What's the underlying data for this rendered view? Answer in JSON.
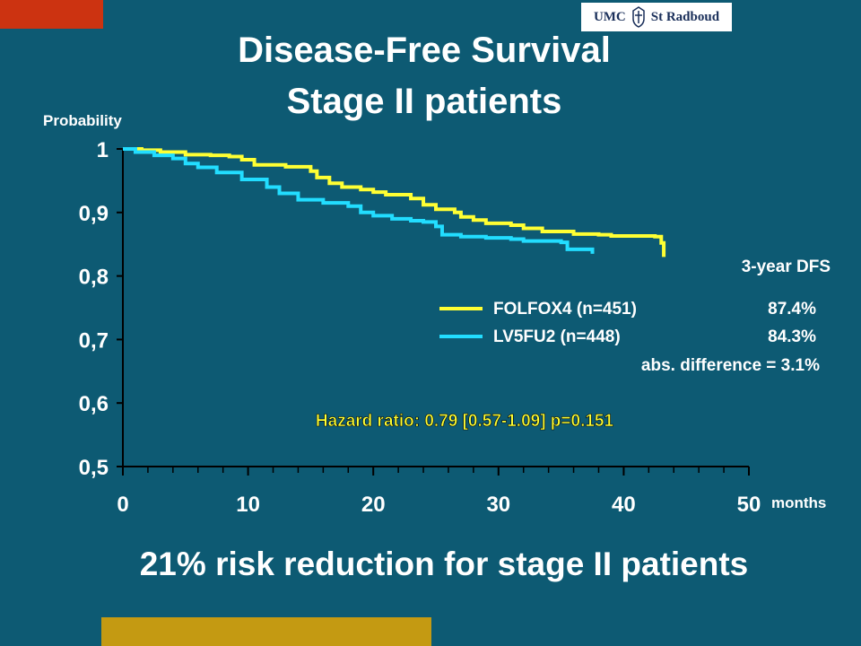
{
  "header": {
    "title_line1": "Disease-Free Survival",
    "title_line2": "Stage II patients",
    "logo_left": "UMC",
    "logo_right": "St Radboud"
  },
  "footer": {
    "subtitle": "21% risk reduction for stage II patients"
  },
  "colors": {
    "background": "#0d5a73",
    "folfox": "#ffff33",
    "lv5fu2": "#22ddff",
    "accent_orange": "#cc3311",
    "accent_gold": "#c49a12"
  },
  "chart_data": {
    "type": "line",
    "title": "",
    "ylabel": "Probability",
    "xlabel": "months",
    "xlim": [
      0,
      50
    ],
    "ylim": [
      0.5,
      1
    ],
    "x_ticks": [
      "0",
      "10",
      "20",
      "30",
      "40",
      "50"
    ],
    "y_ticks": [
      "1",
      "0,9",
      "0,8",
      "0,7",
      "0,6",
      "0,5"
    ],
    "legend_heading": "3-year DFS",
    "legend_position": "right",
    "series": [
      {
        "name": "FOLFOX4 (n=451)",
        "dfs": "87.4%",
        "color": "#ffff33",
        "points": [
          [
            0,
            1.0
          ],
          [
            1.5,
            0.998
          ],
          [
            3,
            0.995
          ],
          [
            5,
            0.991
          ],
          [
            7,
            0.99
          ],
          [
            8.5,
            0.988
          ],
          [
            9.5,
            0.983
          ],
          [
            10.5,
            0.975
          ],
          [
            13,
            0.972
          ],
          [
            15,
            0.965
          ],
          [
            15.5,
            0.955
          ],
          [
            16.5,
            0.946
          ],
          [
            17.5,
            0.94
          ],
          [
            19,
            0.936
          ],
          [
            20,
            0.932
          ],
          [
            21,
            0.928
          ],
          [
            23,
            0.922
          ],
          [
            24,
            0.912
          ],
          [
            25,
            0.905
          ],
          [
            26.5,
            0.9
          ],
          [
            27,
            0.893
          ],
          [
            28,
            0.888
          ],
          [
            29,
            0.883
          ],
          [
            31,
            0.88
          ],
          [
            32,
            0.875
          ],
          [
            33.5,
            0.87
          ],
          [
            36,
            0.866
          ],
          [
            38,
            0.865
          ],
          [
            39,
            0.863
          ],
          [
            41,
            0.863
          ],
          [
            42.5,
            0.862
          ],
          [
            43,
            0.852
          ],
          [
            43.2,
            0.83
          ]
        ]
      },
      {
        "name": "LV5FU2 (n=448)",
        "dfs": "84.3%",
        "color": "#22ddff",
        "points": [
          [
            0,
            1.0
          ],
          [
            1,
            0.995
          ],
          [
            2.5,
            0.99
          ],
          [
            4,
            0.985
          ],
          [
            5,
            0.977
          ],
          [
            6,
            0.971
          ],
          [
            7.5,
            0.963
          ],
          [
            9.5,
            0.952
          ],
          [
            11.5,
            0.94
          ],
          [
            12.5,
            0.93
          ],
          [
            14,
            0.92
          ],
          [
            16,
            0.915
          ],
          [
            18,
            0.91
          ],
          [
            19,
            0.9
          ],
          [
            20,
            0.895
          ],
          [
            21.5,
            0.89
          ],
          [
            23,
            0.887
          ],
          [
            24,
            0.885
          ],
          [
            25,
            0.878
          ],
          [
            25.5,
            0.865
          ],
          [
            27,
            0.862
          ],
          [
            29,
            0.86
          ],
          [
            31,
            0.858
          ],
          [
            32,
            0.855
          ],
          [
            34,
            0.855
          ],
          [
            35,
            0.853
          ],
          [
            35.5,
            0.842
          ],
          [
            37,
            0.842
          ],
          [
            37.5,
            0.835
          ]
        ]
      }
    ],
    "annotations": {
      "abs_difference": "abs. difference = 3.1%",
      "hazard_ratio": "Hazard ratio: 0.79 [0.57-1.09]  p=0.151"
    }
  }
}
